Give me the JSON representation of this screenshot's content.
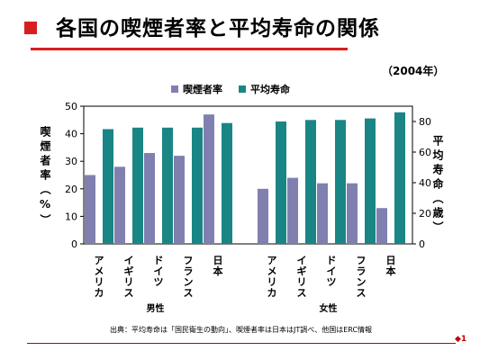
{
  "title": "各国の喫煙者率と平均寿命の関係",
  "year_label": "（2004年）",
  "source": "出典：平均寿命は「国民衛生の動向」、喫煙者率は日本はJT調べ、他国はERC情報",
  "page_number": "1",
  "colors": {
    "smoking": "#8080b0",
    "lifespan": "#1a8585",
    "accent": "#d81e1e"
  },
  "chart_data": {
    "type": "bar",
    "groups": [
      {
        "name": "男性",
        "categories": [
          "アメリカ",
          "イギリス",
          "ドイツ",
          "フランス",
          "日本"
        ]
      },
      {
        "name": "女性",
        "categories": [
          "アメリカ",
          "イギリス",
          "ドイツ",
          "フランス",
          "日本"
        ]
      }
    ],
    "series": [
      {
        "name": "喫煙者率",
        "axis": "left",
        "values": [
          25,
          28,
          33,
          32,
          47,
          20,
          24,
          22,
          22,
          13
        ]
      },
      {
        "name": "平均寿命",
        "axis": "right",
        "values": [
          75,
          76,
          76,
          76,
          79,
          80,
          81,
          81,
          82,
          86
        ]
      }
    ],
    "ylabel_left": "喫煙者率（%）",
    "ylabel_right": "平均寿命（歳）",
    "ylim_left": [
      0,
      50
    ],
    "ylim_right": [
      0,
      90
    ],
    "yticks_left": [
      0,
      10,
      20,
      30,
      40,
      50
    ],
    "yticks_right": [
      0,
      20,
      40,
      60,
      80
    ],
    "legend_position": "top-center",
    "grid": false
  }
}
